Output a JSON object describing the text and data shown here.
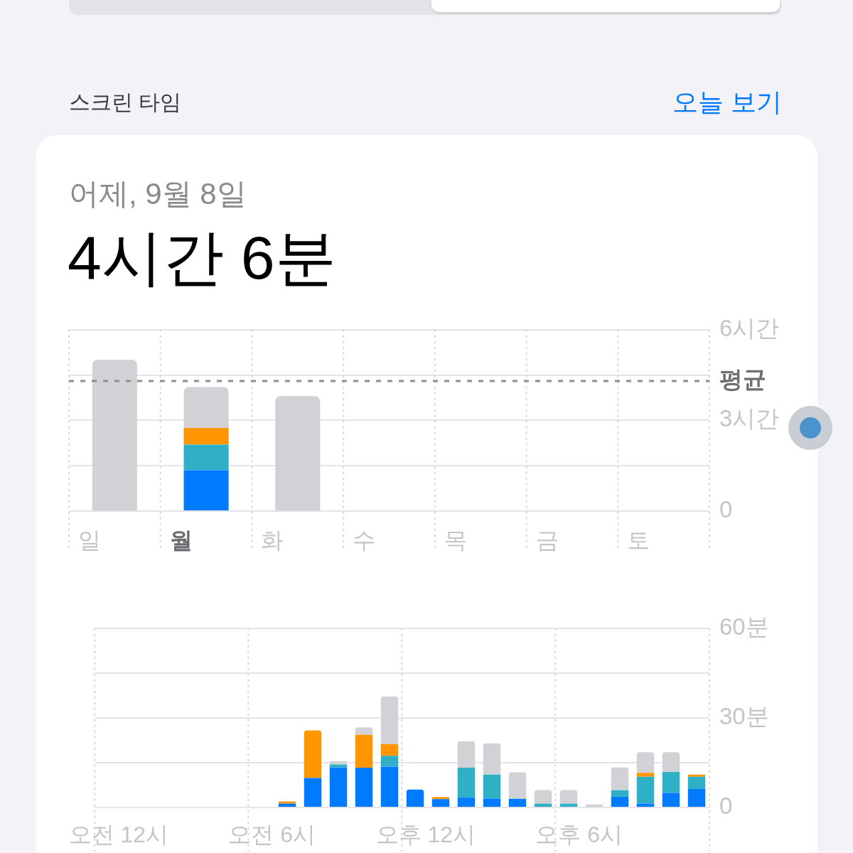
{
  "chart_data": [
    {
      "type": "bar",
      "title": "4시간 6분",
      "subtitle": "어제, 9월 8일",
      "annotations": [
        "스크린 타임",
        "오늘 보기"
      ],
      "categories": [
        "일",
        "월",
        "화",
        "수",
        "목",
        "금",
        "토"
      ],
      "stacked": true,
      "series": [
        {
          "color": "#007aff",
          "values": [
            null,
            1.35,
            null,
            null,
            null,
            null,
            null
          ]
        },
        {
          "color": "#30b0c7",
          "values": [
            null,
            0.85,
            null,
            null,
            null,
            null,
            null
          ]
        },
        {
          "color": "#ff9500",
          "values": [
            null,
            0.55,
            null,
            null,
            null,
            null,
            null
          ]
        },
        {
          "color": "#d1d1d6",
          "values": [
            5.0,
            1.35,
            3.8,
            null,
            null,
            null,
            null
          ]
        }
      ],
      "ylim": [
        0,
        6
      ],
      "yticks": [
        0,
        {
          "value": 1.5,
          "label": null
        },
        {
          "value": 3,
          "label": "3시간"
        },
        {
          "value": 4.5,
          "label": null
        },
        {
          "value": 6,
          "label": "6시간"
        }
      ],
      "grid": true,
      "ref_lines": [
        {
          "axis": "y",
          "value": 4.3,
          "label": "평균",
          "line_style": "dashed",
          "color": "#8e8e93"
        }
      ]
    },
    {
      "type": "bar",
      "categories": [
        "오전 12시",
        null,
        null,
        null,
        null,
        null,
        "오전 6시",
        null,
        null,
        null,
        null,
        null,
        "오후 12시",
        null,
        null,
        null,
        null,
        null,
        "오후 6시",
        null,
        null,
        null,
        null,
        null
      ],
      "stacked": true,
      "series": [
        {
          "color": "#007aff",
          "values": [
            null,
            null,
            null,
            null,
            null,
            null,
            null,
            1.3,
            9.9,
            13.4,
            13.3,
            13.7,
            6.0,
            2.8,
            3.3,
            3.0,
            2.9,
            null,
            null,
            null,
            3.6,
            1.3,
            4.9,
            6.2
          ]
        },
        {
          "color": "#30b0c7",
          "values": [
            null,
            null,
            null,
            null,
            null,
            null,
            null,
            null,
            null,
            1.0,
            null,
            3.6,
            null,
            null,
            10.0,
            8.0,
            null,
            1.3,
            1.3,
            null,
            2.2,
            9.0,
            7.0,
            4.1
          ]
        },
        {
          "color": "#ff9500",
          "values": [
            null,
            null,
            null,
            null,
            null,
            null,
            null,
            0.7,
            15.9,
            null,
            11.0,
            3.9,
            null,
            0.7,
            null,
            null,
            null,
            null,
            null,
            null,
            null,
            1.3,
            null,
            0.7
          ]
        },
        {
          "color": "#d1d1d6",
          "values": [
            null,
            null,
            null,
            null,
            null,
            null,
            null,
            null,
            null,
            1.1,
            2.5,
            16.0,
            null,
            null,
            8.9,
            10.5,
            8.9,
            4.5,
            4.5,
            1.0,
            7.6,
            6.9,
            6.6,
            null
          ]
        }
      ],
      "ylim": [
        0,
        60
      ],
      "yticks": [
        0,
        {
          "value": 15,
          "label": null
        },
        {
          "value": 30,
          "label": "30분"
        },
        {
          "value": 45,
          "label": null
        },
        {
          "value": 60,
          "label": "60분"
        }
      ],
      "grid": true
    }
  ]
}
